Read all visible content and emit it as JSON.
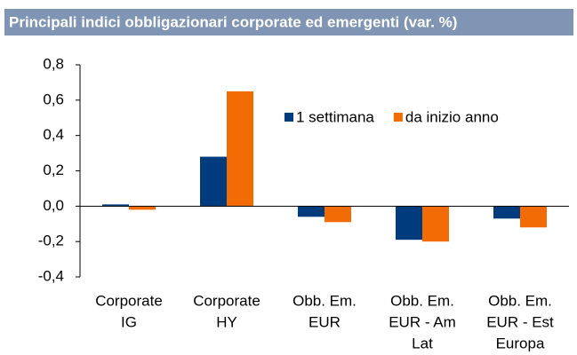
{
  "chart_data": {
    "type": "bar",
    "title": "Principali indici obbligazionari corporate ed emergenti (var. %)",
    "categories": [
      [
        "Corporate",
        "IG"
      ],
      [
        "Corporate",
        "HY"
      ],
      [
        "Obb. Em.",
        "EUR"
      ],
      [
        "Obb. Em.",
        "EUR - Am",
        "Lat"
      ],
      [
        "Obb. Em.",
        "EUR - Est",
        "Europa"
      ]
    ],
    "series": [
      {
        "name": "1 settimana",
        "color": "#003b7e",
        "values": [
          0.01,
          0.28,
          -0.06,
          -0.19,
          -0.07
        ]
      },
      {
        "name": "da inizio anno",
        "color": "#f26b05",
        "values": [
          -0.02,
          0.65,
          -0.09,
          -0.2,
          -0.12
        ]
      }
    ],
    "ylim": [
      -0.4,
      0.8
    ],
    "yticks": [
      {
        "value": -0.4,
        "label": "-0,4"
      },
      {
        "value": -0.2,
        "label": "-0,2"
      },
      {
        "value": 0,
        "label": "0,0"
      },
      {
        "value": 0.2,
        "label": "0,2"
      },
      {
        "value": 0.4,
        "label": "0,4"
      },
      {
        "value": 0.6,
        "label": "0,6"
      },
      {
        "value": 0.8,
        "label": "0,8"
      }
    ],
    "legend": "top-right"
  }
}
